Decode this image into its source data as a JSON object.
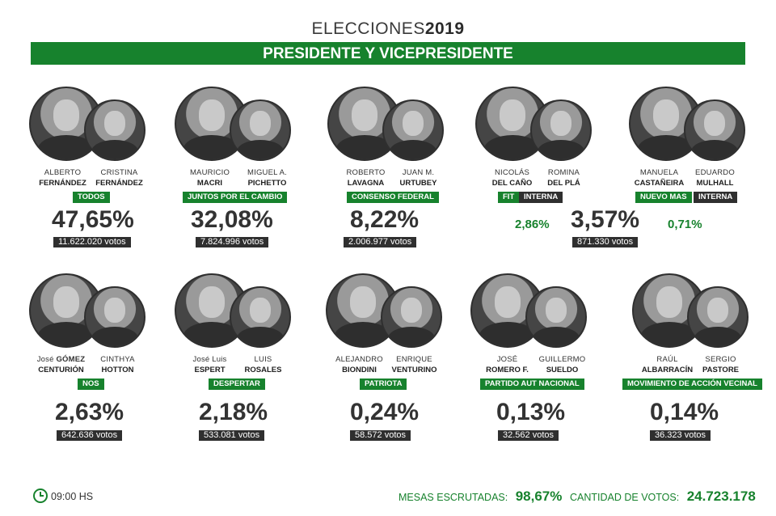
{
  "header": {
    "title_prefix": "ELECCIONES",
    "title_year": "2019",
    "banner": "PRESIDENTE Y VICEPRESIDENTE"
  },
  "colors": {
    "accent": "#17822d",
    "dark": "#2f2f2f"
  },
  "candidates": [
    {
      "p1_first": "ALBERTO",
      "p1_last": "FERNÁNDEZ",
      "p2_first": "CRISTINA",
      "p2_last": "FERNÁNDEZ",
      "party": "TODOS",
      "percent": "47,65%",
      "votes": "11.622.020 votos"
    },
    {
      "p1_first": "MAURICIO",
      "p1_last": "MACRI",
      "p2_first": "MIGUEL A.",
      "p2_last": "PICHETTO",
      "party": "JUNTOS POR EL CAMBIO",
      "percent": "32,08%",
      "votes": "7.824.996 votos"
    },
    {
      "p1_first": "ROBERTO",
      "p1_last": "LAVAGNA",
      "p2_first": "JUAN M.",
      "p2_last": "URTUBEY",
      "party": "CONSENSO FEDERAL",
      "percent": "8,22%",
      "votes": "2.006.977 votos"
    },
    {
      "p1_first": "NICOLÁS",
      "p1_last": "DEL CAÑO",
      "p2_first": "ROMINA",
      "p2_last": "DEL PLÁ",
      "party": "FIT",
      "party_extra": "INTERNA",
      "percent": "3,57%",
      "votes": "871.330 votos",
      "sub_left": "2,86%",
      "sub_right": ""
    },
    {
      "p1_first": "MANUELA",
      "p1_last": "CASTAÑEIRA",
      "p2_first": "EDUARDO",
      "p2_last": "MULHALL",
      "party": "NUEVO MAS",
      "party_extra": "INTERNA",
      "percent": "",
      "votes": "",
      "sub_left": "0,71%",
      "sub_right": ""
    },
    {
      "p1_first": "José",
      "p1_first_bold": "GÓMEZ",
      "p1_last": "CENTURIÓN",
      "p2_first": "CINTHYA",
      "p2_last": "HOTTON",
      "party": "NOS",
      "percent": "2,63%",
      "votes": "642.636 votos"
    },
    {
      "p1_first": "José Luis",
      "p1_last": "ESPERT",
      "p2_first": "LUIS",
      "p2_last": "ROSALES",
      "party": "DESPERTAR",
      "percent": "2,18%",
      "votes": "533.081 votos"
    },
    {
      "p1_first": "ALEJANDRO",
      "p1_last": "BIONDINI",
      "p2_first": "ENRIQUE",
      "p2_last": "VENTURINO",
      "party": "PATRIOTA",
      "percent": "0,24%",
      "votes": "58.572 votos"
    },
    {
      "p1_first": "JOSÉ",
      "p1_last": "ROMERO F.",
      "p2_first": "GUILLERMO",
      "p2_last": "SUELDO",
      "party": "PARTIDO AUT NACIONAL",
      "percent": "0,13%",
      "votes": "32.562 votos"
    },
    {
      "p1_first": "RAÚL",
      "p1_last": "ALBARRACÍN",
      "p2_first": "SERGIO",
      "p2_last": "PASTORE",
      "party": "MOVIMIENTO DE ACCIÓN VECINAL",
      "percent": "0,14%",
      "votes": "36.323 votos"
    }
  ],
  "footer": {
    "time": "09:00 HS",
    "mesas_label": "MESAS ESCRUTADAS:",
    "mesas_value": "98,67%",
    "votos_label": "CANTIDAD DE VOTOS:",
    "votos_value": "24.723.178"
  }
}
